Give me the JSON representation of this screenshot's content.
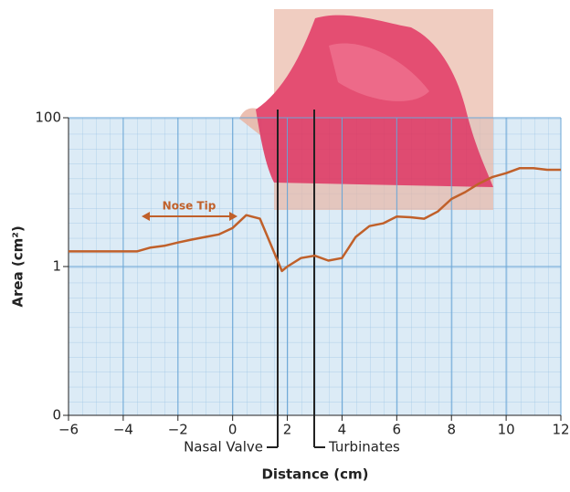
{
  "chart_data": {
    "type": "line",
    "x": [
      -6,
      -4,
      -3.5,
      -3,
      -2.5,
      -2,
      -1.5,
      -1,
      -0.5,
      0,
      0.5,
      1,
      1.5,
      1.8,
      2,
      2.5,
      3,
      3.5,
      4,
      4.5,
      5,
      5.5,
      6,
      6.5,
      7,
      7.5,
      8,
      8.5,
      9,
      9.5,
      10,
      10.5,
      11,
      11.5,
      12
    ],
    "values": [
      1.6,
      1.6,
      1.6,
      1.8,
      1.9,
      2.1,
      2.3,
      2.5,
      2.7,
      3.3,
      4.9,
      4.4,
      1.6,
      0.87,
      1.0,
      1.3,
      1.4,
      1.2,
      1.3,
      2.5,
      3.5,
      3.8,
      4.7,
      4.6,
      4.4,
      5.5,
      8.1,
      10,
      13,
      16,
      18,
      21,
      21,
      20,
      20
    ],
    "color": "#c0602a",
    "xlabel": "Distance (cm)",
    "ylabel": "Area (cm²)",
    "xlim": [
      -6,
      12
    ],
    "xticks": [
      {
        "value": -6,
        "label": "−6"
      },
      {
        "value": -4,
        "label": "−4"
      },
      {
        "value": -2,
        "label": "−2"
      },
      0,
      2,
      4,
      6,
      8,
      10,
      12
    ],
    "ylim": [
      0.01,
      100
    ],
    "yscale": "log",
    "yticks": [
      {
        "value": 0.01,
        "label": "0"
      },
      1,
      100
    ],
    "grid": true,
    "annotations": [
      "Nose Tip",
      "Nasal Valve",
      "Turbinates"
    ]
  }
}
